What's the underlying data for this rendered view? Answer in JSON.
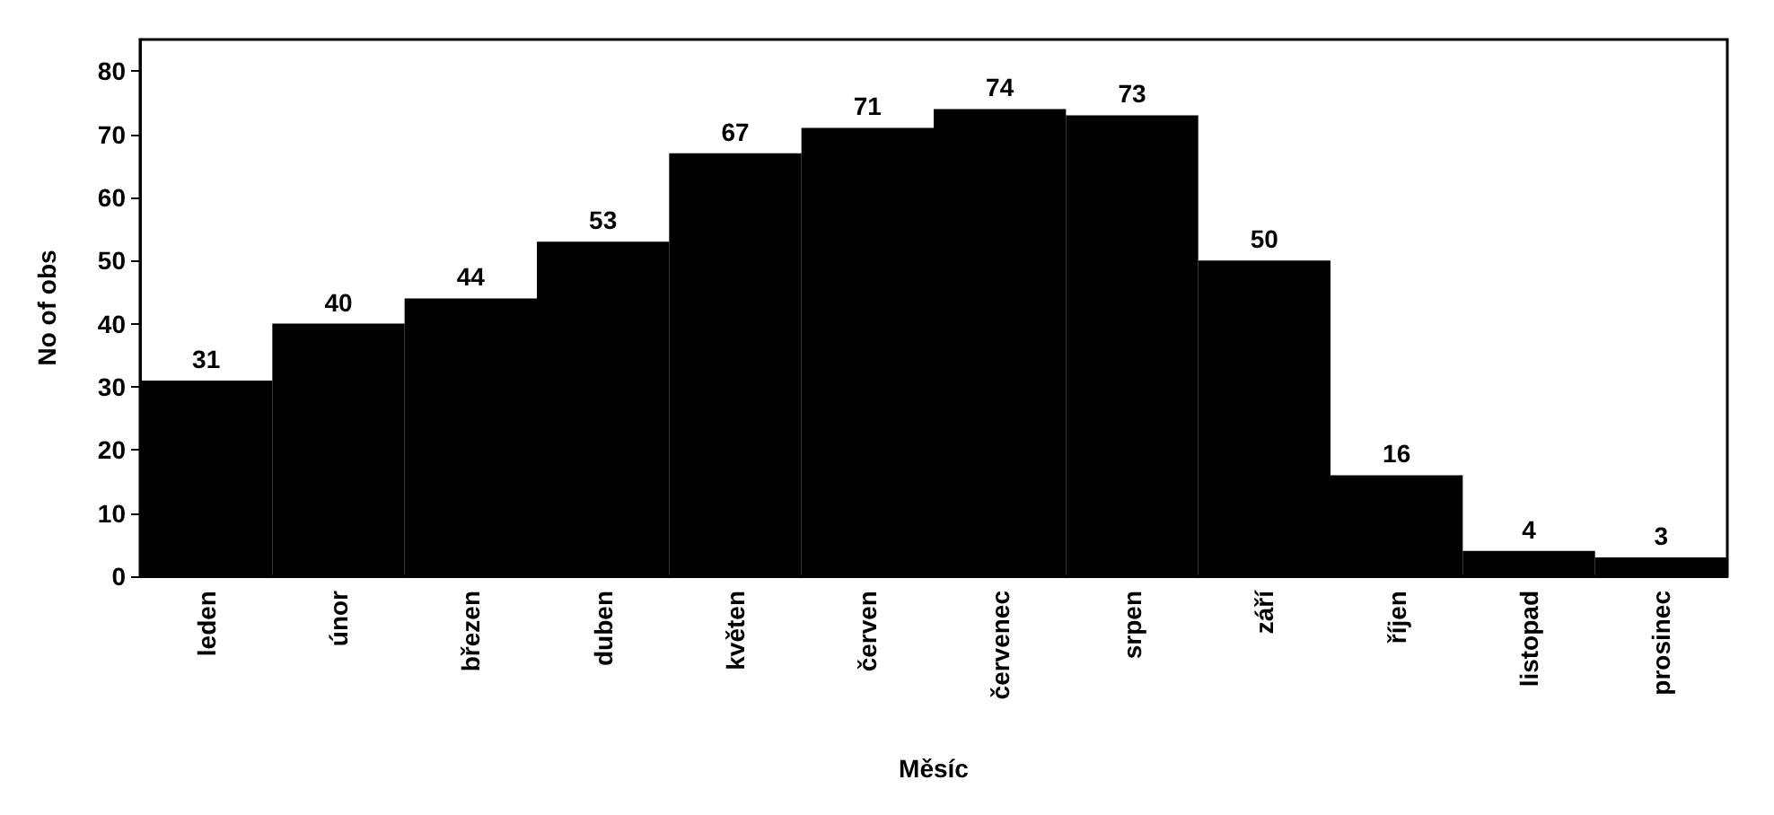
{
  "chart_data": {
    "type": "bar",
    "xlabel": "Měsíc",
    "ylabel": "No of obs",
    "categories": [
      "leden",
      "únor",
      "březen",
      "duben",
      "květen",
      "červen",
      "červenec",
      "srpen",
      "září",
      "říjen",
      "listopad",
      "prosinec"
    ],
    "values": [
      31,
      40,
      44,
      53,
      67,
      71,
      74,
      73,
      50,
      16,
      4,
      3
    ],
    "color": "#000000",
    "ylim": [
      0,
      85
    ],
    "yticks": [
      0,
      10,
      20,
      30,
      40,
      50,
      60,
      70,
      80
    ],
    "grid": false,
    "data_labels": true
  }
}
